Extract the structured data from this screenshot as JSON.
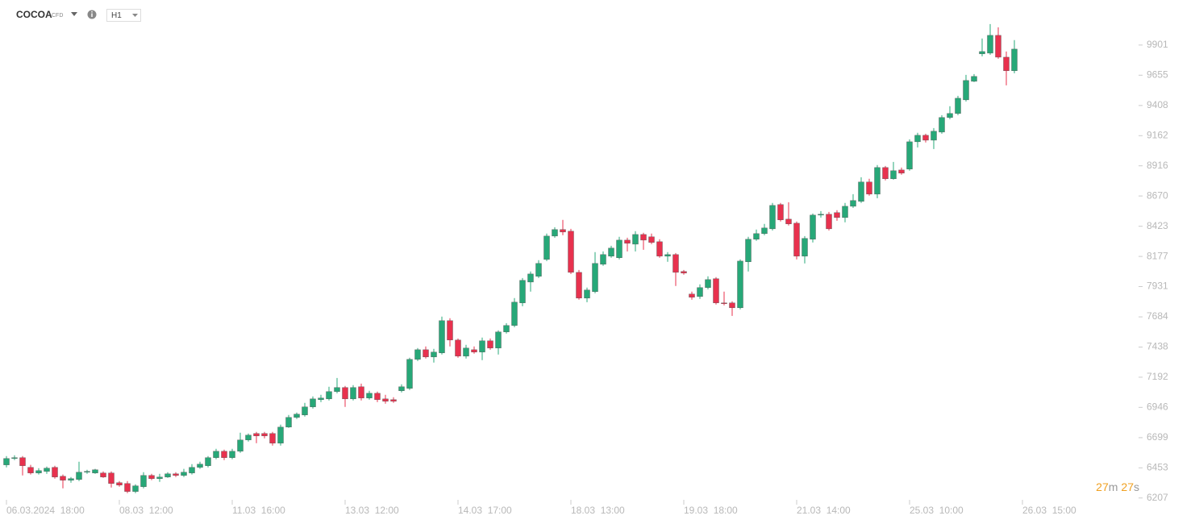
{
  "header": {
    "symbol": "COCOA",
    "kind": "CFD",
    "interval": "H1"
  },
  "countdown": {
    "minutes": "27",
    "minutes_unit": "m",
    "seconds": "27",
    "seconds_unit": "s"
  },
  "chart_data": {
    "type": "candlestick",
    "up_color": "#27a878",
    "down_color": "#e8314e",
    "ylim": [
      6100,
      10150
    ],
    "yticks": [
      6207,
      6453,
      6699,
      6946,
      7192,
      7438,
      7684,
      7931,
      8177,
      8423,
      8670,
      8916,
      9162,
      9408,
      9655,
      9901
    ],
    "categories": [
      "06.03.2024  18:00",
      null,
      null,
      null,
      null,
      null,
      null,
      null,
      null,
      null,
      null,
      null,
      null,
      null,
      "08.03  12:00",
      null,
      null,
      null,
      null,
      null,
      null,
      null,
      null,
      null,
      null,
      null,
      null,
      null,
      "11.03  16:00",
      null,
      null,
      null,
      null,
      null,
      null,
      null,
      null,
      null,
      null,
      null,
      null,
      null,
      "13.03  12:00",
      null,
      null,
      null,
      null,
      null,
      null,
      null,
      null,
      null,
      null,
      null,
      null,
      null,
      "14.03  17:00",
      null,
      null,
      null,
      null,
      null,
      null,
      null,
      null,
      null,
      null,
      null,
      null,
      null,
      "18.03  13:00",
      null,
      null,
      null,
      null,
      null,
      null,
      null,
      null,
      null,
      null,
      null,
      null,
      null,
      "19.03  18:00",
      null,
      null,
      null,
      null,
      null,
      null,
      null,
      null,
      null,
      null,
      null,
      null,
      null,
      "21.03  14:00",
      null,
      null,
      null,
      null,
      null,
      null,
      null,
      null,
      null,
      null,
      null,
      null,
      null,
      "25.03  10:00",
      null,
      null,
      null,
      null,
      null,
      null,
      null,
      null,
      null,
      null,
      null,
      null,
      null,
      "26.03  15:00"
    ],
    "open": [
      6477,
      6529,
      6536,
      6457,
      6411,
      6424,
      6457,
      6384,
      6352,
      6358,
      6417,
      6411,
      6411,
      6411,
      6332,
      6325,
      6260,
      6299,
      6391,
      6365,
      6378,
      6404,
      6391,
      6411,
      6457,
      6470,
      6536,
      6588,
      6536,
      6588,
      6680,
      6733,
      6733,
      6733,
      6654,
      6785,
      6864,
      6884,
      6950,
      7009,
      7015,
      7075,
      7108,
      7015,
      7114,
      7022,
      7061,
      7015,
      7009,
      7081,
      7101,
      7338,
      7416,
      7357,
      7390,
      7653,
      7495,
      7364,
      7416,
      7397,
      7489,
      7430,
      7561,
      7614,
      7798,
      7968,
      8015,
      8153,
      8343,
      8396,
      8383,
      8047,
      7837,
      7890,
      8113,
      8179,
      8166,
      8310,
      8277,
      8356,
      8337,
      8297,
      8179,
      8192,
      8054,
      7870,
      7850,
      7923,
      7995,
      7798,
      7798,
      7758,
      8133,
      8317,
      8363,
      8402,
      8600,
      8481,
      8448,
      8179,
      8317,
      8514,
      8521,
      8534,
      8494,
      8586,
      8626,
      8784,
      8685,
      8902,
      8810,
      8882,
      8889,
      9112,
      9165,
      9125,
      9191,
      9310,
      9343,
      9454,
      9605,
      9829,
      9835,
      9980,
      9802,
      9691,
      null
    ],
    "high": [
      6549,
      6555,
      6549,
      6477,
      6450,
      6463,
      6470,
      6398,
      6378,
      6503,
      6437,
      6444,
      6424,
      6424,
      6345,
      6345,
      6319,
      6417,
      6404,
      6404,
      6417,
      6417,
      6444,
      6483,
      6503,
      6549,
      6608,
      6601,
      6608,
      6739,
      6733,
      6746,
      6746,
      6746,
      6805,
      6884,
      6904,
      6983,
      7035,
      7048,
      7114,
      7186,
      7121,
      7127,
      7140,
      7081,
      7075,
      7048,
      7029,
      7134,
      7351,
      7430,
      7443,
      7423,
      7686,
      7673,
      7508,
      7456,
      7443,
      7515,
      7508,
      7574,
      7633,
      7837,
      8001,
      8054,
      8146,
      8363,
      8415,
      8475,
      8402,
      8067,
      7923,
      8212,
      8218,
      8264,
      8337,
      8330,
      8383,
      8370,
      8363,
      8317,
      8212,
      8205,
      8067,
      7890,
      7949,
      8015,
      8008,
      7890,
      7811,
      8153,
      8337,
      8396,
      8442,
      8613,
      8613,
      8619,
      8462,
      8343,
      8527,
      8547,
      8540,
      8554,
      8613,
      8685,
      8823,
      8810,
      8922,
      8915,
      8948,
      8902,
      9132,
      9185,
      9178,
      9224,
      9329,
      9402,
      9487,
      9658,
      9664,
      9954,
      10072,
      10046,
      9848,
      9941,
      null
    ],
    "low": [
      6457,
      6516,
      6391,
      6398,
      6398,
      6404,
      6365,
      6286,
      6332,
      6345,
      6404,
      6404,
      6371,
      6292,
      6299,
      6246,
      6246,
      6286,
      6352,
      6338,
      6371,
      6378,
      6378,
      6398,
      6444,
      6457,
      6523,
      6516,
      6523,
      6575,
      6667,
      6654,
      6693,
      6634,
      6634,
      6779,
      6851,
      6871,
      6937,
      6989,
      7002,
      7061,
      6950,
      7002,
      7002,
      7009,
      6989,
      6976,
      6983,
      7068,
      7088,
      7324,
      7344,
      7311,
      7377,
      7443,
      7351,
      7344,
      7384,
      7331,
      7416,
      7377,
      7548,
      7600,
      7771,
      7890,
      8001,
      8139,
      8330,
      8350,
      8034,
      7824,
      7804,
      7877,
      8100,
      8166,
      8153,
      8218,
      8218,
      8231,
      8277,
      8166,
      8133,
      7936,
      8028,
      7824,
      7831,
      7909,
      7785,
      7778,
      7692,
      7745,
      8054,
      8304,
      8350,
      8389,
      8462,
      8429,
      8153,
      8120,
      8291,
      8494,
      8389,
      8468,
      8455,
      8573,
      8613,
      8672,
      8652,
      8797,
      8803,
      8843,
      8876,
      9066,
      9106,
      9053,
      9178,
      9296,
      9329,
      9441,
      9599,
      9809,
      9822,
      9789,
      9572,
      9671,
      null
    ],
    "close": [
      6529,
      6536,
      6470,
      6411,
      6430,
      6450,
      6378,
      6352,
      6365,
      6417,
      6424,
      6437,
      6378,
      6325,
      6312,
      6260,
      6306,
      6391,
      6365,
      6378,
      6404,
      6391,
      6417,
      6457,
      6483,
      6536,
      6588,
      6536,
      6588,
      6680,
      6720,
      6713,
      6713,
      6654,
      6785,
      6864,
      6891,
      6950,
      7015,
      7022,
      7075,
      7108,
      7015,
      7108,
      7022,
      7061,
      7009,
      6996,
      6996,
      7114,
      7338,
      7416,
      7357,
      7397,
      7653,
      7495,
      7364,
      7430,
      7397,
      7489,
      7430,
      7561,
      7614,
      7804,
      7982,
      8034,
      8120,
      8343,
      8396,
      8376,
      8047,
      7837,
      7903,
      8120,
      8192,
      8245,
      8310,
      8284,
      8356,
      8310,
      8291,
      8179,
      8192,
      8047,
      8041,
      7844,
      7923,
      7988,
      7798,
      7791,
      7758,
      8139,
      8317,
      8363,
      8409,
      8593,
      8475,
      8442,
      8179,
      8324,
      8514,
      8521,
      8402,
      8494,
      8586,
      8633,
      8784,
      8685,
      8902,
      8810,
      8876,
      8856,
      9112,
      9165,
      9125,
      9198,
      9310,
      9343,
      9467,
      9612,
      9645,
      9848,
      9980,
      9802,
      9691,
      9868,
      null
    ]
  }
}
